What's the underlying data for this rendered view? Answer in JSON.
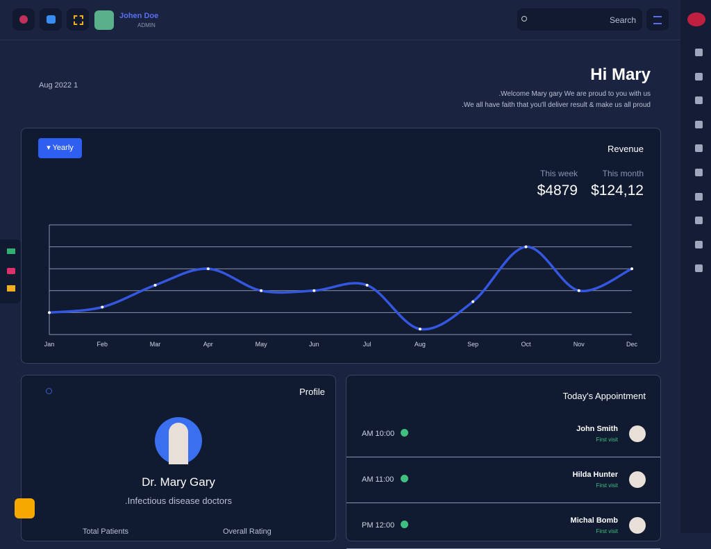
{
  "header": {
    "user_name": "Johen Doe",
    "user_role": "ADMIN",
    "search_placeholder": "Search"
  },
  "greeting": {
    "date": "Aug 2022 1",
    "title": "Hi Mary",
    "lines": [
      ".Welcome Mary gary We are proud to you with us",
      ".We all have faith that you'll deliver result & make us all proud"
    ]
  },
  "revenue": {
    "filter": "Yearly",
    "title": "Revenue",
    "stats": [
      {
        "label": "This week",
        "value": "$4879"
      },
      {
        "label": "This month",
        "value": "$124,12"
      }
    ]
  },
  "chart_data": {
    "type": "line",
    "categories": [
      "Jan",
      "Feb",
      "Mar",
      "Apr",
      "May",
      "Jun",
      "Jul",
      "Aug",
      "Sep",
      "Oct",
      "Nov",
      "Dec"
    ],
    "series": [
      {
        "color": "#3557e0",
        "values": [
          1,
          1.25,
          2.25,
          3,
          2,
          2,
          2.25,
          0.25,
          1.5,
          4,
          2,
          3
        ]
      }
    ],
    "ylim": [
      0,
      5
    ],
    "yticks": [
      1,
      2,
      3,
      4,
      5
    ],
    "grid": true,
    "smooth": true
  },
  "profile": {
    "title": "Profile",
    "name": "Dr. Mary Gary",
    "specialty": ".Infectious disease doctors",
    "stats": [
      "Total Patients",
      "Overall Rating"
    ]
  },
  "appointments": {
    "title": "Today's Appointment",
    "items": [
      {
        "time": "AM 10:00",
        "name": "John Smith",
        "status": "First visit"
      },
      {
        "time": "AM 11:00",
        "name": "Hilda Hunter",
        "status": "First visit"
      },
      {
        "time": "PM 12:00",
        "name": "Michal Bomb",
        "status": "First visit"
      }
    ]
  }
}
